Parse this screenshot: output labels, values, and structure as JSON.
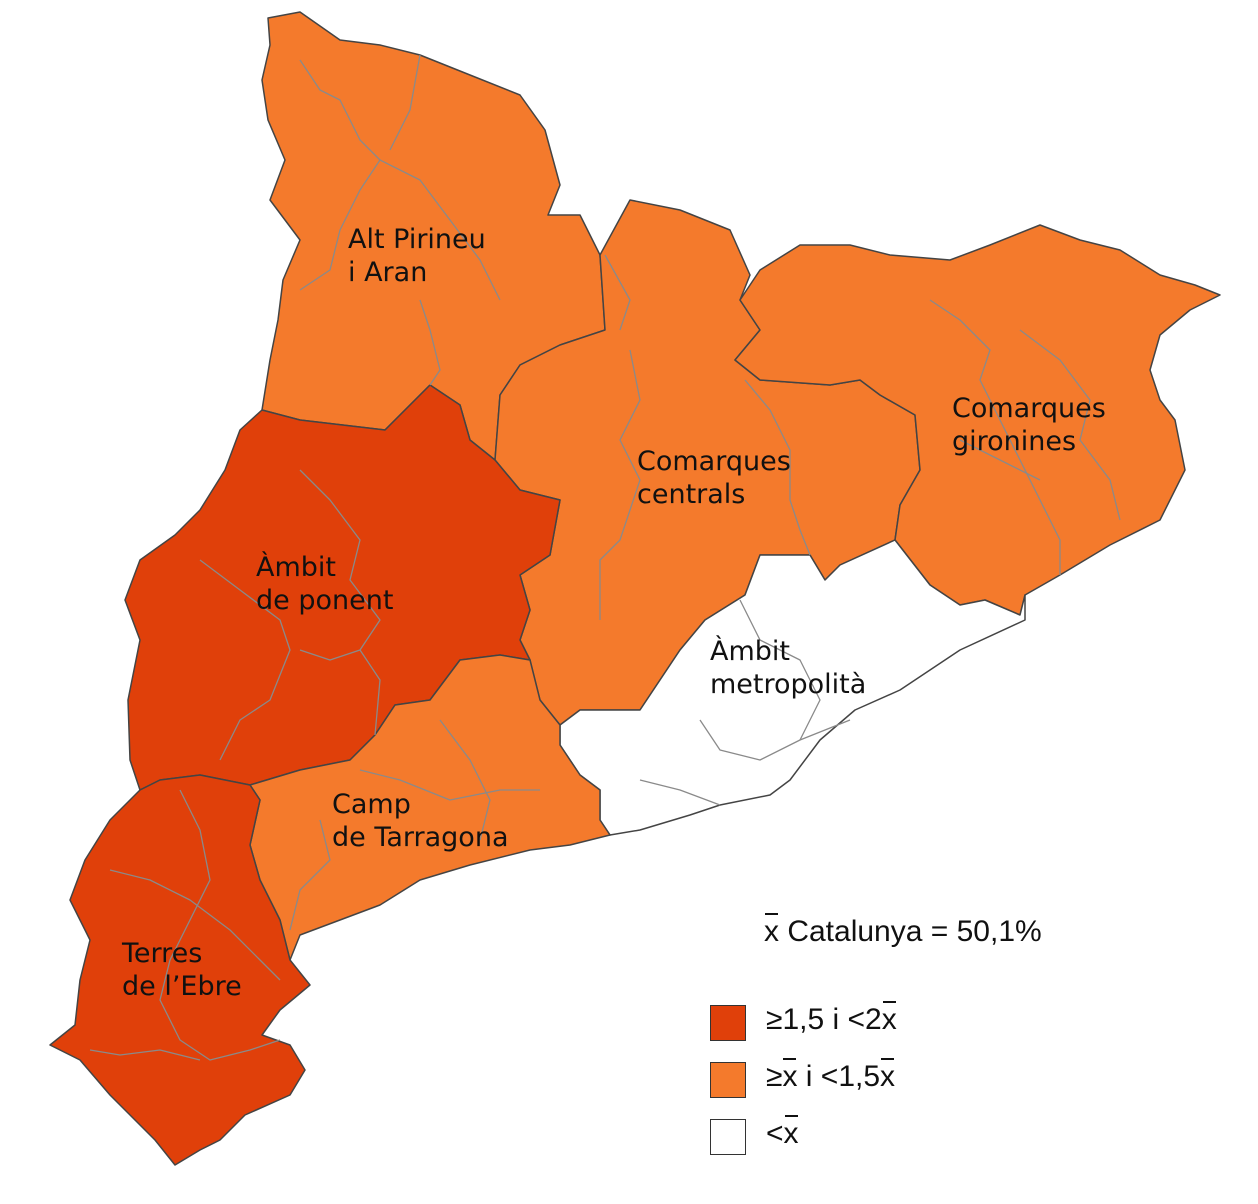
{
  "colors": {
    "dark": "#e0400a",
    "medium": "#f47a2c",
    "low": "#ffffff",
    "border": "#444444",
    "inner_border": "#8a8a8a"
  },
  "regions": {
    "alt_pirineu": {
      "line1": "Alt Pirineu",
      "line2": "i Aran",
      "class": "medium"
    },
    "comarques_centrals": {
      "line1": "Comarques",
      "line2": "centrals",
      "class": "medium"
    },
    "comarques_gironines": {
      "line1": "Comarques",
      "line2": "gironines",
      "class": "medium"
    },
    "ambit_ponent": {
      "line1": "Àmbit",
      "line2": "de ponent",
      "class": "dark"
    },
    "ambit_metropolita": {
      "line1": "Àmbit",
      "line2": "metropolità",
      "class": "low"
    },
    "camp_tarragona": {
      "line1": "Camp",
      "line2": "de Tarragona",
      "class": "medium"
    },
    "terres_ebre": {
      "line1": "Terres",
      "line2": "de l’Ebre",
      "class": "dark"
    }
  },
  "legend": {
    "mean_symbol": "x",
    "mean_text": " Catalunya = 50,1%",
    "items": [
      {
        "pre": "≥1,5 i <2",
        "bar": "x",
        "post": "",
        "color": "#e0400a"
      },
      {
        "pre": "≥",
        "bar": "x",
        "post": " i <1,5",
        "bar2": "x",
        "color": "#f47a2c"
      },
      {
        "pre": "<",
        "bar": "x",
        "post": "",
        "color": "#ffffff"
      }
    ]
  }
}
